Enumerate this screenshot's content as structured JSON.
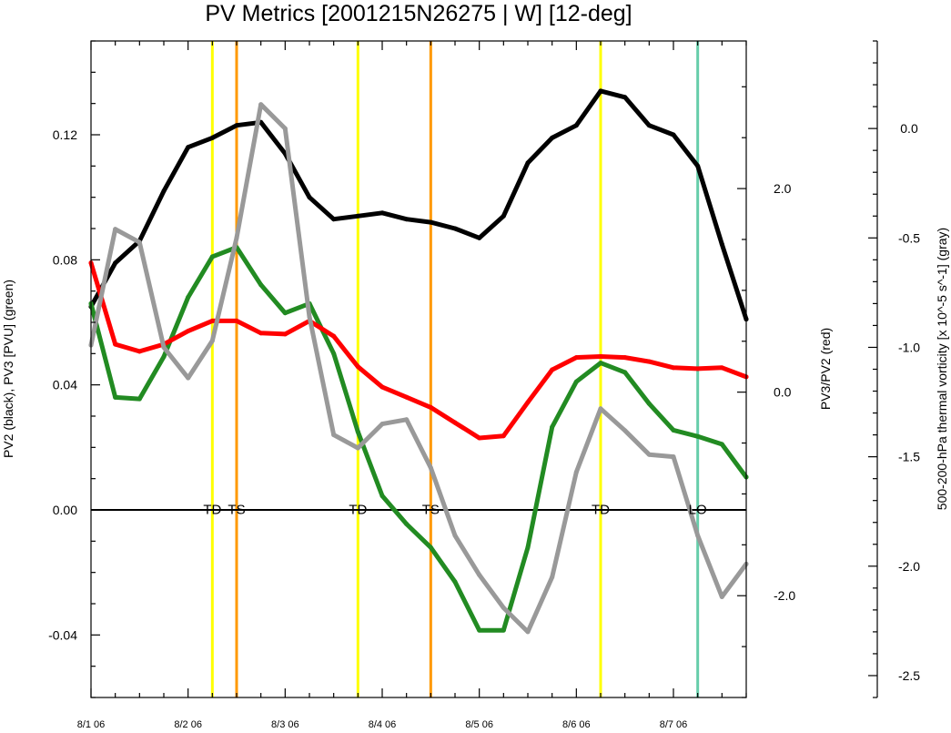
{
  "chart_data": {
    "type": "line",
    "title": "PV Metrics [2001215N26275 | W] [12-deg]",
    "left_axis_label": "PV2 (black), PV3 [PVU] (green)",
    "mid_axis_label": "PV3/PV2 (red)",
    "right_axis_label": "500-200-hPa thermal vorticity [x 10^-5 s^-1] (gray)",
    "x_ticks": [
      {
        "x": 0,
        "label": "8/1 06"
      },
      {
        "x": 1,
        "label": "8/2 06"
      },
      {
        "x": 2,
        "label": "8/3 06"
      },
      {
        "x": 3,
        "label": "8/4 06"
      },
      {
        "x": 4,
        "label": "8/5 06"
      },
      {
        "x": 5,
        "label": "8/6 06"
      },
      {
        "x": 6,
        "label": "8/7 06"
      }
    ],
    "xlim": [
      0,
      6.75
    ],
    "left_axis": {
      "ylim": [
        -0.06,
        0.15
      ],
      "ticks": [
        {
          "v": 0.12,
          "label": "0.12"
        },
        {
          "v": 0.08,
          "label": "0.08"
        },
        {
          "v": 0.04,
          "label": "0.04"
        },
        {
          "v": 0.0,
          "label": "0.00"
        },
        {
          "v": -0.04,
          "label": "-0.04"
        }
      ]
    },
    "mid_axis": {
      "ylim": [
        -3.0,
        3.45
      ],
      "ticks": [
        {
          "v": 2.0,
          "label": "2.0"
        },
        {
          "v": 0.0,
          "label": "0.0"
        },
        {
          "v": -2.0,
          "label": "-2.0"
        }
      ]
    },
    "right_axis": {
      "ylim": [
        -2.6,
        0.4
      ],
      "ticks": [
        {
          "v": 0.0,
          "label": "0.0"
        },
        {
          "v": -0.5,
          "label": "-0.5"
        },
        {
          "v": -1.0,
          "label": "-1.0"
        },
        {
          "v": -1.5,
          "label": "-1.5"
        },
        {
          "v": -2.0,
          "label": "-2.0"
        },
        {
          "v": -2.5,
          "label": "-2.5"
        }
      ]
    },
    "series": [
      {
        "color": "#000000",
        "axis": "left",
        "x": [
          0,
          0.25,
          0.5,
          0.75,
          1,
          1.25,
          1.5,
          1.75,
          2,
          2.25,
          2.5,
          2.75,
          3,
          3.25,
          3.5,
          3.75,
          4,
          4.25,
          4.5,
          4.75,
          5,
          5.25,
          5.5,
          5.75,
          6,
          6.25,
          6.5,
          6.75
        ],
        "y": [
          0.065,
          0.079,
          0.086,
          0.102,
          0.116,
          0.119,
          0.123,
          0.124,
          0.114,
          0.1,
          0.093,
          0.094,
          0.095,
          0.093,
          0.092,
          0.09,
          0.087,
          0.094,
          0.111,
          0.119,
          0.123,
          0.134,
          0.132,
          0.123,
          0.12,
          0.11,
          0.085,
          0.061
        ]
      },
      {
        "color": "#228b22",
        "axis": "left",
        "x": [
          0,
          0.25,
          0.5,
          0.75,
          1,
          1.25,
          1.5,
          1.75,
          2,
          2.25,
          2.5,
          2.75,
          3,
          3.25,
          3.5,
          3.75,
          4,
          4.25,
          4.5,
          4.75,
          5,
          5.25,
          5.5,
          5.75,
          6,
          6.25,
          6.5,
          6.75
        ],
        "y": [
          0.066,
          0.036,
          0.0355,
          0.049,
          0.068,
          0.081,
          0.084,
          0.072,
          0.063,
          0.066,
          0.05,
          0.025,
          0.0045,
          -0.0045,
          -0.012,
          -0.023,
          -0.0385,
          -0.0385,
          -0.012,
          0.0265,
          0.041,
          0.047,
          0.044,
          0.034,
          0.0255,
          0.0235,
          0.021,
          0.0105
        ]
      },
      {
        "color": "#ff0000",
        "axis": "mid",
        "x": [
          0,
          0.25,
          0.5,
          0.75,
          1,
          1.25,
          1.5,
          1.75,
          2,
          2.25,
          2.5,
          2.75,
          3,
          3.25,
          3.5,
          3.75,
          4,
          4.25,
          4.5,
          4.75,
          5,
          5.25,
          5.5,
          5.75,
          6,
          6.25,
          6.5,
          6.75
        ],
        "y": [
          1.27,
          0.47,
          0.4,
          0.47,
          0.6,
          0.7,
          0.7,
          0.58,
          0.57,
          0.7,
          0.55,
          0.25,
          0.05,
          -0.05,
          -0.15,
          -0.3,
          -0.45,
          -0.43,
          -0.1,
          0.22,
          0.34,
          0.35,
          0.34,
          0.3,
          0.24,
          0.23,
          0.24,
          0.15
        ]
      },
      {
        "color": "#999999",
        "axis": "right",
        "x": [
          0,
          0.25,
          0.5,
          0.75,
          1,
          1.25,
          1.5,
          1.75,
          2,
          2.25,
          2.5,
          2.75,
          3,
          3.25,
          3.5,
          3.75,
          4,
          4.25,
          4.5,
          4.75,
          5,
          5.25,
          5.5,
          5.75,
          6,
          6.25,
          6.5,
          6.75
        ],
        "y": [
          -0.99,
          -0.46,
          -0.52,
          -1.0,
          -1.14,
          -0.97,
          -0.5,
          0.11,
          0.0,
          -0.86,
          -1.4,
          -1.46,
          -1.35,
          -1.33,
          -1.55,
          -1.86,
          -2.04,
          -2.19,
          -2.3,
          -2.05,
          -1.57,
          -1.28,
          -1.38,
          -1.49,
          -1.5,
          -1.86,
          -2.14,
          -1.99
        ]
      }
    ],
    "event_lines": [
      {
        "x": 1.25,
        "color": "#ffff00"
      },
      {
        "x": 1.5,
        "color": "#ff9900"
      },
      {
        "x": 2.75,
        "color": "#ffff00"
      },
      {
        "x": 3.5,
        "color": "#ff9900"
      },
      {
        "x": 5.25,
        "color": "#ffff00"
      },
      {
        "x": 6.25,
        "color": "#66cdaa"
      }
    ],
    "event_labels": [
      {
        "x": 1.25,
        "label": "TD"
      },
      {
        "x": 1.5,
        "label": "TS"
      },
      {
        "x": 2.75,
        "label": "TD"
      },
      {
        "x": 3.5,
        "label": "TS"
      },
      {
        "x": 5.25,
        "label": "TD"
      },
      {
        "x": 6.25,
        "label": "LO"
      }
    ]
  }
}
